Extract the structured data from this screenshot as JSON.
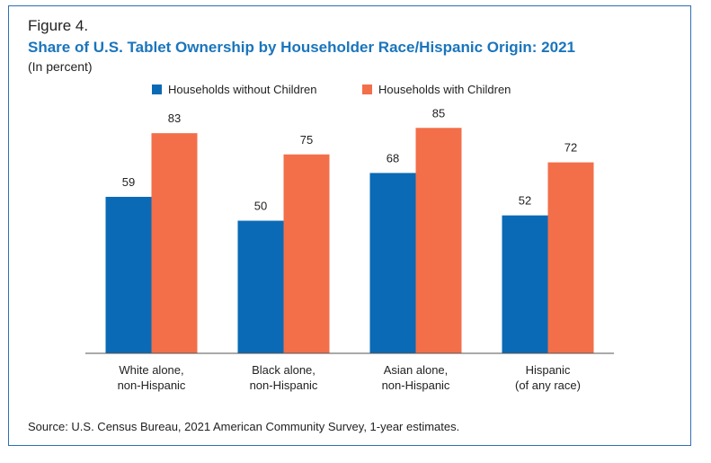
{
  "figure_label": "Figure 4.",
  "source": "Source: U.S. Census Bureau, 2021 American Community Survey, 1-year estimates.",
  "chart_data": {
    "type": "bar",
    "title": "Share of U.S. Tablet Ownership by Householder Race/Hispanic Origin: 2021",
    "subtitle": "(In percent)",
    "xlabel": "",
    "ylabel": "",
    "ylim": [
      0,
      100
    ],
    "grid": false,
    "legend": "top-center",
    "categories": [
      [
        "White alone,",
        "non-Hispanic"
      ],
      [
        "Black alone,",
        "non-Hispanic"
      ],
      [
        "Asian alone,",
        "non-Hispanic"
      ],
      [
        "Hispanic",
        "(of any race)"
      ]
    ],
    "series": [
      {
        "name": "Households without Children",
        "color": "#0a6ab5",
        "values": [
          59,
          50,
          68,
          52
        ]
      },
      {
        "name": "Households with Children",
        "color": "#f26f4a",
        "values": [
          83,
          75,
          85,
          72
        ]
      }
    ]
  }
}
